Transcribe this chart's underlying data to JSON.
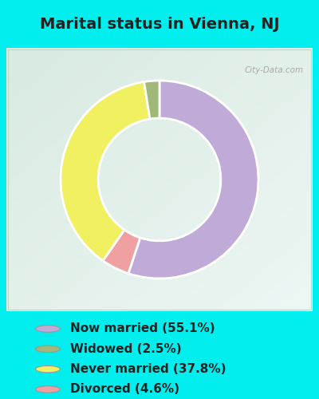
{
  "title": "Marital status in Vienna, NJ",
  "categories": [
    "Now married",
    "Widowed",
    "Never married",
    "Divorced"
  ],
  "values": [
    55.1,
    2.5,
    37.8,
    4.6
  ],
  "colors": [
    "#c0aad8",
    "#a0b878",
    "#f0f060",
    "#f0a0a0"
  ],
  "legend_labels": [
    "Now married (55.1%)",
    "Widowed (2.5%)",
    "Never married (37.8%)",
    "Divorced (4.6%)"
  ],
  "donut_width": 0.38,
  "title_fontsize": 14,
  "legend_fontsize": 11,
  "watermark": "City-Data.com",
  "bg_color": "#00eeee",
  "chart_bg_left": "#d8ede4",
  "chart_bg_right": "#e8f0e8",
  "wedge_order": [
    0,
    3,
    2,
    1
  ]
}
